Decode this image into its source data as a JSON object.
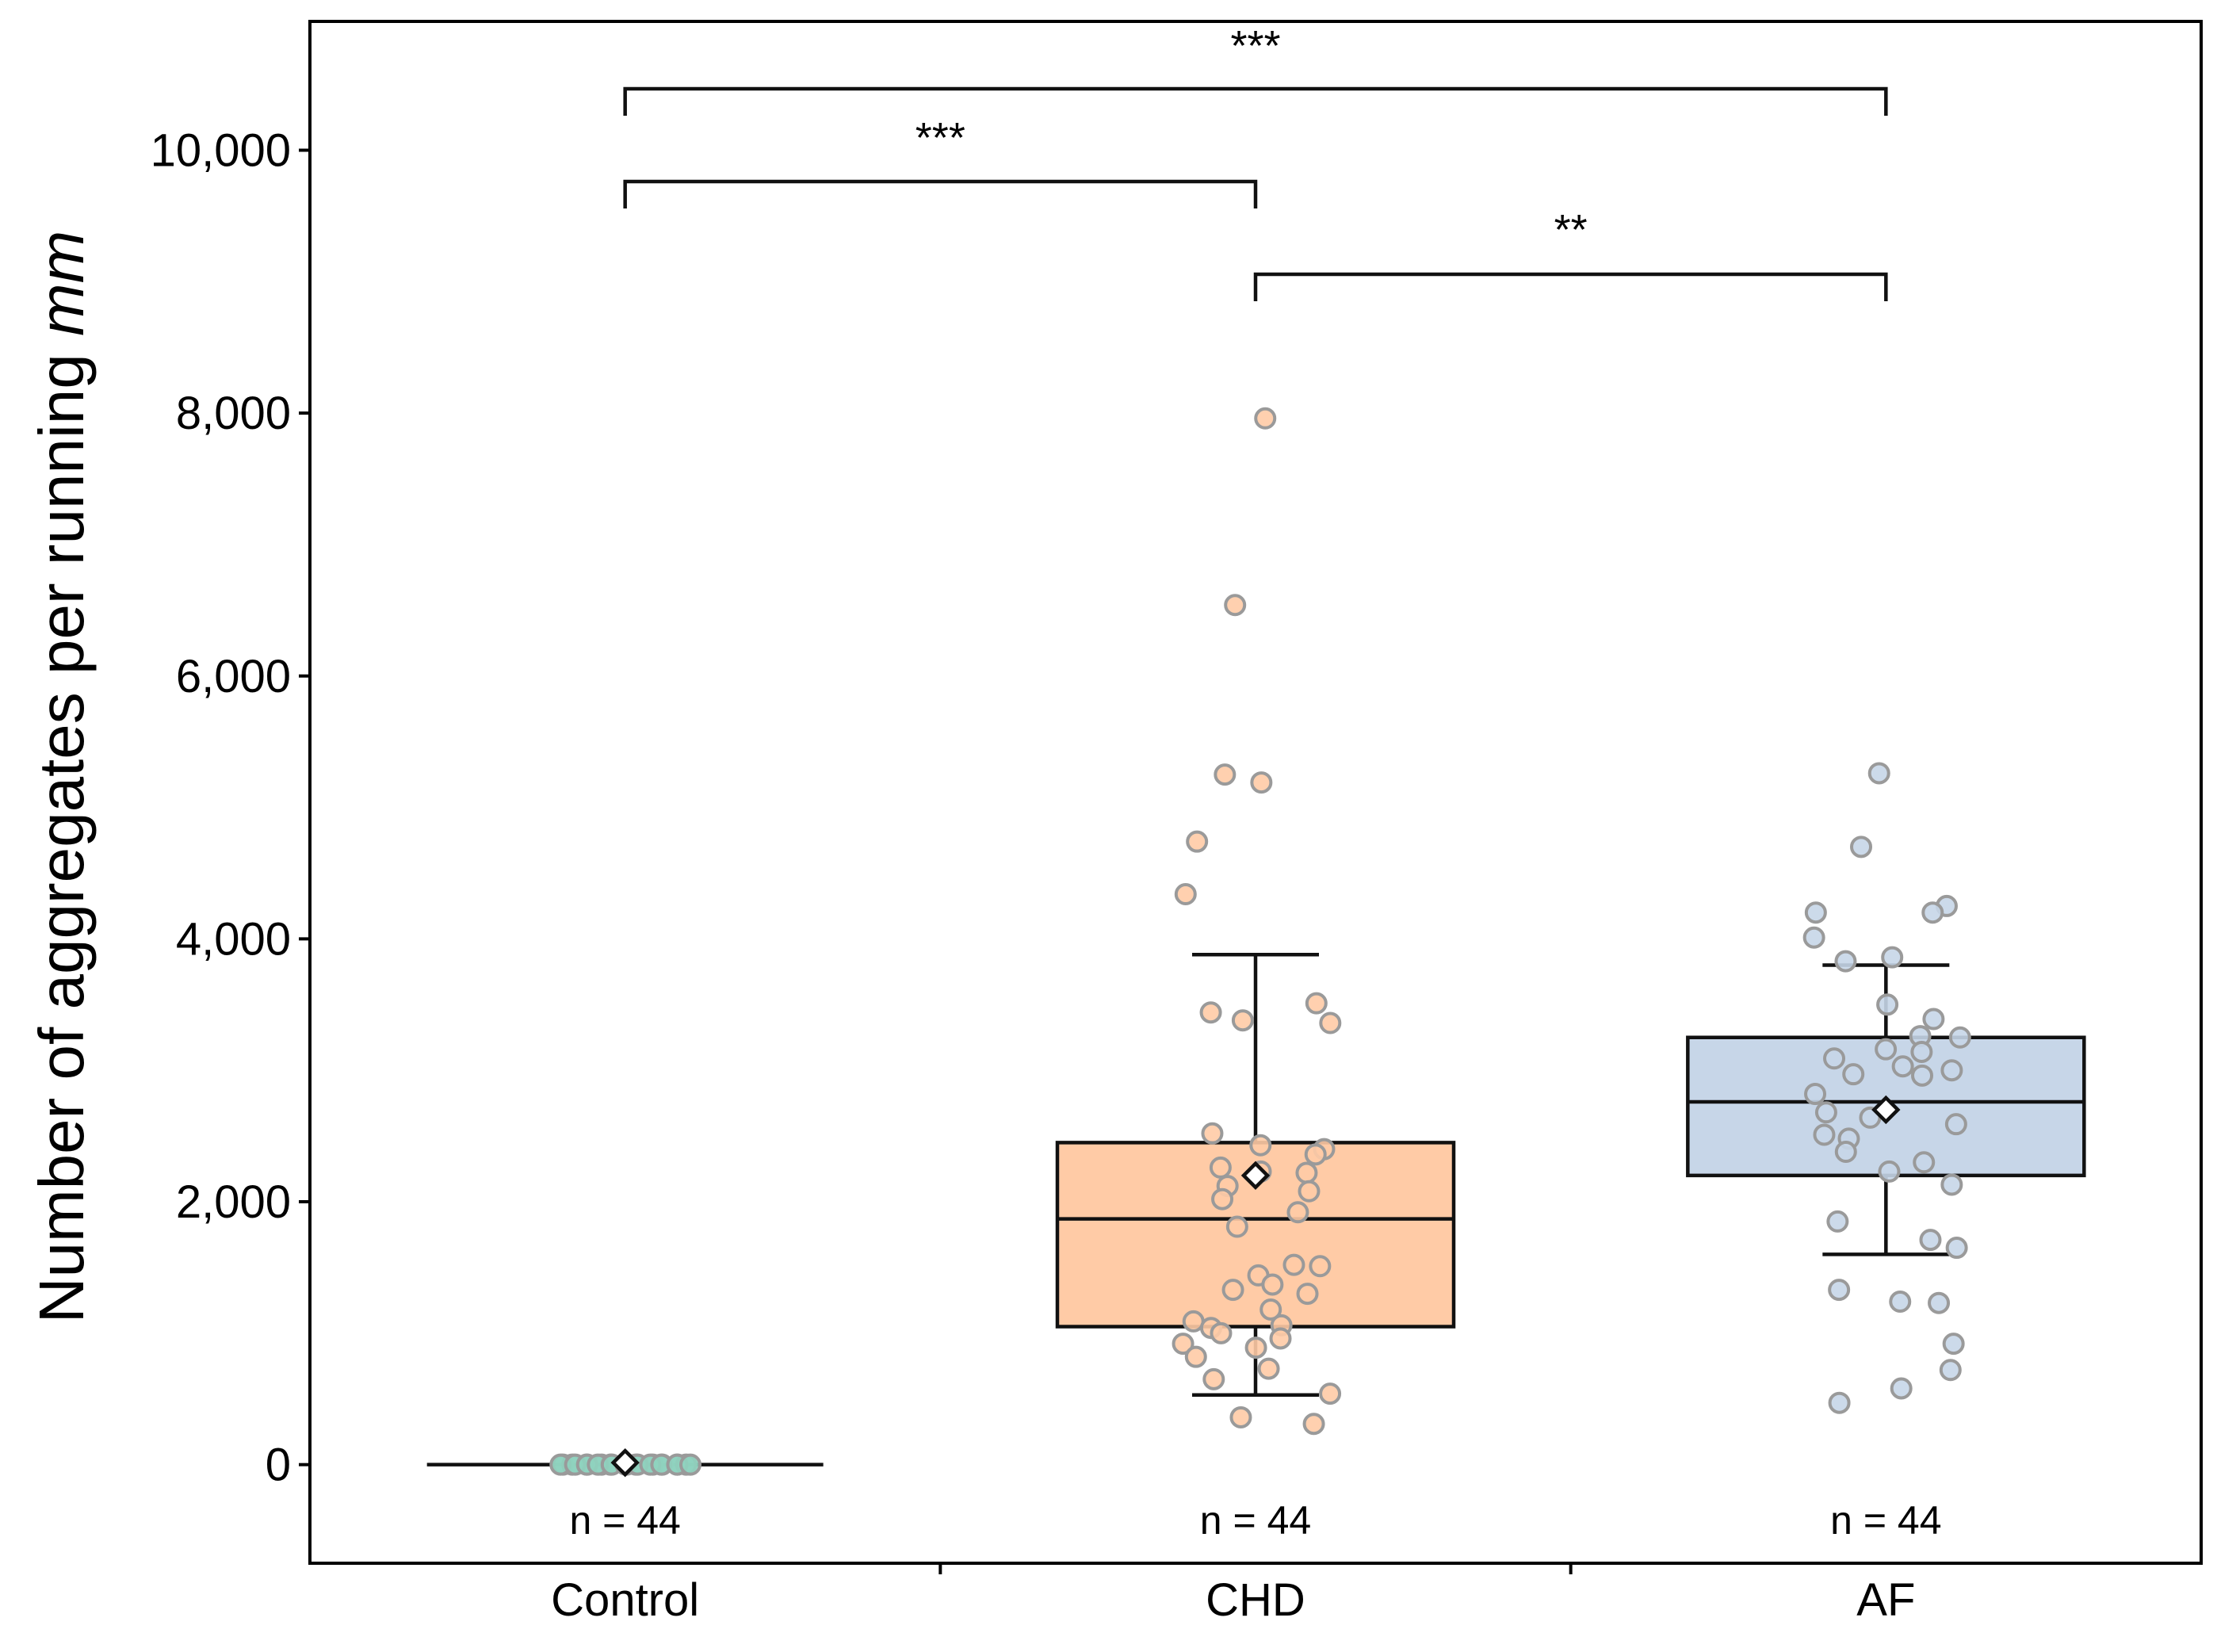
{
  "chart_data": {
    "type": "box",
    "title": "",
    "xlabel": "",
    "ylabel_prefix": "Number of aggregates per running ",
    "ylabel_unit": "mm",
    "ylim": [
      -750,
      10980
    ],
    "yticks": [
      0,
      2000,
      4000,
      6000,
      8000,
      10000
    ],
    "ytick_labels": [
      "0",
      "2,000",
      "4,000",
      "6,000",
      "8,000",
      "10,000"
    ],
    "grid": false,
    "legend": "none",
    "categories": [
      "Control",
      "CHD",
      "AF"
    ],
    "groups": [
      {
        "name": "Control",
        "n_label": "n = 44",
        "color": "#8fd3bf",
        "box": {
          "whisker_low": 0,
          "q1": 0,
          "median": 0,
          "q3": 0,
          "whisker_high": 0,
          "mean": 15
        },
        "points": [
          0,
          0,
          0,
          0,
          0,
          0,
          0,
          0,
          0,
          0,
          0,
          0,
          0,
          0,
          0,
          0,
          0,
          0,
          0,
          0,
          0,
          0
        ]
      },
      {
        "name": "CHD",
        "n_label": "n = 44",
        "color": "#ffcba6",
        "box": {
          "whisker_low": 530,
          "q1": 1050,
          "median": 1870,
          "q3": 2450,
          "whisker_high": 3880,
          "mean": 2200
        },
        "points": [
          7960,
          6540,
          5250,
          5190,
          4740,
          4340,
          3510,
          3440,
          3380,
          3360,
          2520,
          2430,
          2400,
          2360,
          2260,
          2230,
          2220,
          2120,
          2080,
          2020,
          1920,
          1810,
          1520,
          1510,
          1440,
          1370,
          1330,
          1300,
          1180,
          1090,
          1060,
          1040,
          1000,
          960,
          920,
          890,
          820,
          730,
          650,
          540,
          360,
          310
        ]
      },
      {
        "name": "AF",
        "n_label": "n = 44",
        "color": "#c7d6e8",
        "box": {
          "whisker_low": 1600,
          "q1": 2200,
          "median": 2760,
          "q3": 3250,
          "whisker_high": 3800,
          "mean": 2700
        },
        "points": [
          5260,
          4700,
          4250,
          4200,
          4200,
          4010,
          3860,
          3830,
          3500,
          3390,
          3260,
          3250,
          3160,
          3140,
          3090,
          3030,
          3000,
          2970,
          2960,
          2820,
          2680,
          2640,
          2590,
          2510,
          2480,
          2380,
          2300,
          2230,
          2130,
          1850,
          1710,
          1650,
          1330,
          1240,
          1230,
          920,
          720,
          580,
          470
        ]
      }
    ],
    "significance": [
      {
        "from": "Control",
        "to": "AF",
        "label": "***"
      },
      {
        "from": "Control",
        "to": "CHD",
        "label": "***"
      },
      {
        "from": "CHD",
        "to": "AF",
        "label": "**"
      }
    ]
  }
}
